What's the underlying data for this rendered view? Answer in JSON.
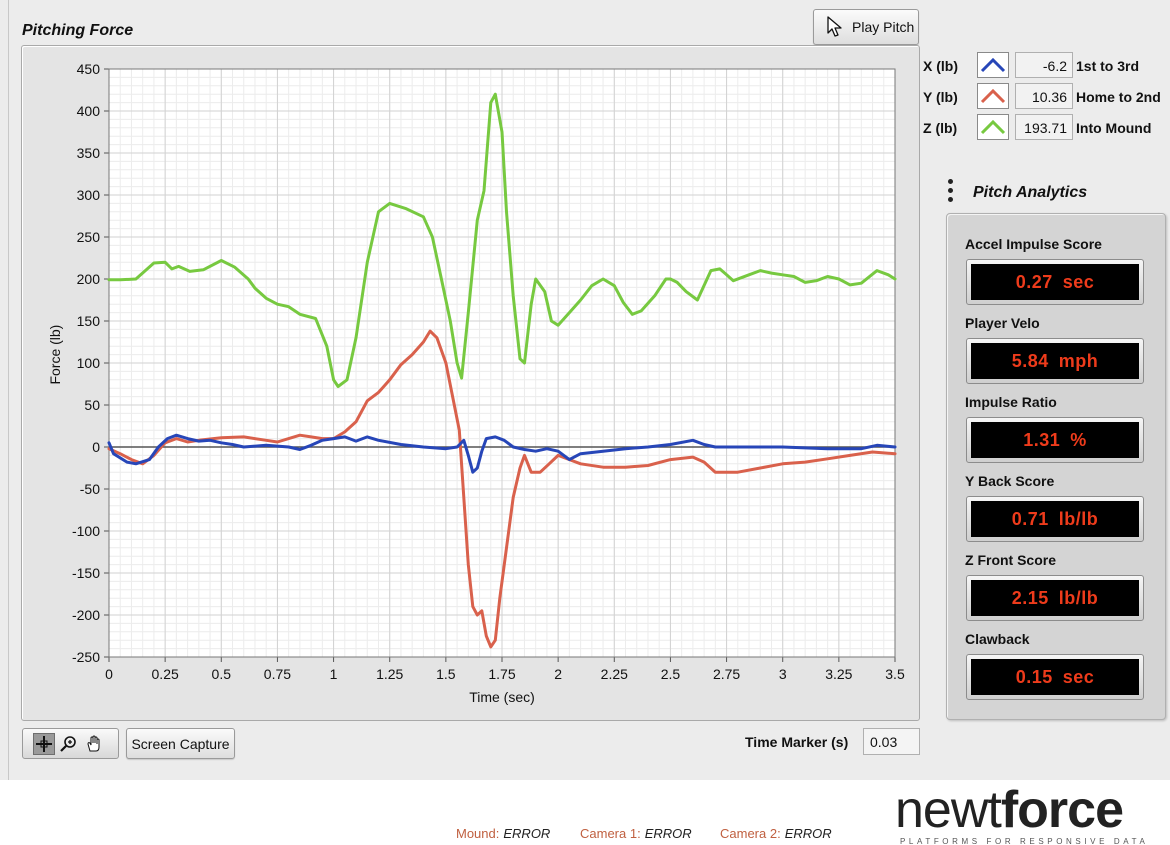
{
  "title": "Pitching Force",
  "play_button": {
    "label": "Play Pitch"
  },
  "legend": [
    {
      "axis": "X (lb)",
      "value": "-6.2",
      "description": "1st to 3rd",
      "color": "#2746b8"
    },
    {
      "axis": "Y (lb)",
      "value": "10.36",
      "description": "Home to 2nd",
      "color": "#d9614c"
    },
    {
      "axis": "Z (lb)",
      "value": "193.71",
      "description": "Into Mound",
      "color": "#77c940"
    }
  ],
  "analytics": {
    "title": "Pitch Analytics",
    "metrics": [
      {
        "label": "Accel Impulse Score",
        "value": "0.27",
        "unit": "sec"
      },
      {
        "label": "Player Velo",
        "value": "5.84",
        "unit": "mph"
      },
      {
        "label": "Impulse Ratio",
        "value": "1.31",
        "unit": "%"
      },
      {
        "label": "Y Back Score",
        "value": "0.71",
        "unit": "lb/lb"
      },
      {
        "label": "Z Front Score",
        "value": "2.15",
        "unit": "lb/lb"
      },
      {
        "label": "Clawback",
        "value": "0.15",
        "unit": "sec"
      }
    ]
  },
  "toolbar": {
    "screen_capture_label": "Screen Capture"
  },
  "time_marker": {
    "label": "Time Marker (s)",
    "value": "0.03"
  },
  "status": [
    {
      "key": "Mound:",
      "value": "ERROR"
    },
    {
      "key": "Camera 1:",
      "value": "ERROR"
    },
    {
      "key": "Camera 2:",
      "value": "ERROR"
    }
  ],
  "logo": {
    "part1": "newt",
    "part2": "force",
    "tagline": "PLATFORMS FOR RESPONSIVE DATA"
  },
  "chart_data": {
    "type": "line",
    "title": "",
    "xlabel": "Time (sec)",
    "ylabel": "Force (lb)",
    "xlim": [
      0,
      3.5
    ],
    "ylim": [
      -250,
      450
    ],
    "x_ticks": [
      "0",
      "0.25",
      "0.5",
      "0.75",
      "1",
      "1.25",
      "1.5",
      "1.75",
      "2",
      "2.25",
      "2.5",
      "2.75",
      "3",
      "3.25",
      "3.5"
    ],
    "y_ticks": [
      "450",
      "400",
      "350",
      "300",
      "250",
      "200",
      "150",
      "100",
      "50",
      "0",
      "-50",
      "-100",
      "-150",
      "-200",
      "-250"
    ],
    "grid": true,
    "zero_line": true,
    "series": [
      {
        "name": "Z (lb)",
        "color": "#77c940",
        "points": [
          [
            0,
            199
          ],
          [
            0.05,
            199
          ],
          [
            0.12,
            200
          ],
          [
            0.2,
            219
          ],
          [
            0.25,
            220
          ],
          [
            0.28,
            212
          ],
          [
            0.31,
            215
          ],
          [
            0.36,
            209
          ],
          [
            0.42,
            211
          ],
          [
            0.5,
            222
          ],
          [
            0.56,
            214
          ],
          [
            0.62,
            200
          ],
          [
            0.65,
            189
          ],
          [
            0.7,
            177
          ],
          [
            0.75,
            170
          ],
          [
            0.8,
            167
          ],
          [
            0.85,
            158
          ],
          [
            0.92,
            153
          ],
          [
            0.97,
            120
          ],
          [
            1.0,
            80
          ],
          [
            1.02,
            72
          ],
          [
            1.06,
            80
          ],
          [
            1.1,
            130
          ],
          [
            1.15,
            220
          ],
          [
            1.2,
            280
          ],
          [
            1.25,
            290
          ],
          [
            1.32,
            284
          ],
          [
            1.4,
            274
          ],
          [
            1.44,
            250
          ],
          [
            1.48,
            200
          ],
          [
            1.52,
            150
          ],
          [
            1.55,
            100
          ],
          [
            1.57,
            82
          ],
          [
            1.6,
            160
          ],
          [
            1.64,
            270
          ],
          [
            1.67,
            305
          ],
          [
            1.7,
            410
          ],
          [
            1.72,
            420
          ],
          [
            1.75,
            375
          ],
          [
            1.77,
            280
          ],
          [
            1.8,
            180
          ],
          [
            1.83,
            105
          ],
          [
            1.85,
            100
          ],
          [
            1.88,
            170
          ],
          [
            1.9,
            200
          ],
          [
            1.94,
            185
          ],
          [
            1.97,
            150
          ],
          [
            2.0,
            145
          ],
          [
            2.05,
            160
          ],
          [
            2.1,
            175
          ],
          [
            2.15,
            192
          ],
          [
            2.2,
            200
          ],
          [
            2.25,
            192
          ],
          [
            2.29,
            172
          ],
          [
            2.33,
            158
          ],
          [
            2.37,
            162
          ],
          [
            2.43,
            180
          ],
          [
            2.48,
            200
          ],
          [
            2.5,
            200
          ],
          [
            2.53,
            196
          ],
          [
            2.57,
            185
          ],
          [
            2.62,
            175
          ],
          [
            2.68,
            210
          ],
          [
            2.72,
            212
          ],
          [
            2.75,
            205
          ],
          [
            2.78,
            198
          ],
          [
            2.85,
            205
          ],
          [
            2.9,
            210
          ],
          [
            2.95,
            207
          ],
          [
            3.0,
            205
          ],
          [
            3.05,
            203
          ],
          [
            3.1,
            196
          ],
          [
            3.15,
            198
          ],
          [
            3.2,
            203
          ],
          [
            3.25,
            200
          ],
          [
            3.3,
            193
          ],
          [
            3.35,
            195
          ],
          [
            3.42,
            210
          ],
          [
            3.47,
            205
          ],
          [
            3.5,
            200
          ]
        ]
      },
      {
        "name": "Y (lb)",
        "color": "#d9614c",
        "points": [
          [
            0,
            -2
          ],
          [
            0.05,
            -8
          ],
          [
            0.1,
            -15
          ],
          [
            0.15,
            -20
          ],
          [
            0.2,
            -10
          ],
          [
            0.25,
            5
          ],
          [
            0.3,
            10
          ],
          [
            0.35,
            6
          ],
          [
            0.4,
            8
          ],
          [
            0.5,
            11
          ],
          [
            0.6,
            12
          ],
          [
            0.7,
            8
          ],
          [
            0.75,
            6
          ],
          [
            0.8,
            10
          ],
          [
            0.85,
            14
          ],
          [
            0.9,
            12
          ],
          [
            0.95,
            10
          ],
          [
            1.0,
            10
          ],
          [
            1.05,
            18
          ],
          [
            1.1,
            30
          ],
          [
            1.15,
            55
          ],
          [
            1.2,
            65
          ],
          [
            1.25,
            80
          ],
          [
            1.3,
            98
          ],
          [
            1.35,
            110
          ],
          [
            1.4,
            125
          ],
          [
            1.43,
            138
          ],
          [
            1.46,
            130
          ],
          [
            1.5,
            100
          ],
          [
            1.53,
            60
          ],
          [
            1.56,
            20
          ],
          [
            1.58,
            -60
          ],
          [
            1.6,
            -140
          ],
          [
            1.62,
            -190
          ],
          [
            1.64,
            -200
          ],
          [
            1.66,
            -195
          ],
          [
            1.68,
            -225
          ],
          [
            1.7,
            -238
          ],
          [
            1.72,
            -230
          ],
          [
            1.74,
            -180
          ],
          [
            1.77,
            -120
          ],
          [
            1.8,
            -60
          ],
          [
            1.83,
            -25
          ],
          [
            1.85,
            -10
          ],
          [
            1.88,
            -30
          ],
          [
            1.92,
            -30
          ],
          [
            1.96,
            -20
          ],
          [
            2.0,
            -10
          ],
          [
            2.05,
            -15
          ],
          [
            2.1,
            -20
          ],
          [
            2.2,
            -24
          ],
          [
            2.3,
            -24
          ],
          [
            2.4,
            -22
          ],
          [
            2.5,
            -15
          ],
          [
            2.6,
            -12
          ],
          [
            2.65,
            -18
          ],
          [
            2.7,
            -30
          ],
          [
            2.8,
            -30
          ],
          [
            2.9,
            -25
          ],
          [
            3.0,
            -20
          ],
          [
            3.1,
            -18
          ],
          [
            3.2,
            -14
          ],
          [
            3.3,
            -10
          ],
          [
            3.4,
            -6
          ],
          [
            3.5,
            -8
          ]
        ]
      },
      {
        "name": "X (lb)",
        "color": "#2746b8",
        "points": [
          [
            0,
            5
          ],
          [
            0.02,
            -8
          ],
          [
            0.08,
            -18
          ],
          [
            0.12,
            -20
          ],
          [
            0.18,
            -15
          ],
          [
            0.22,
            0
          ],
          [
            0.26,
            10
          ],
          [
            0.3,
            14
          ],
          [
            0.35,
            10
          ],
          [
            0.4,
            7
          ],
          [
            0.45,
            8
          ],
          [
            0.5,
            5
          ],
          [
            0.55,
            3
          ],
          [
            0.6,
            0
          ],
          [
            0.7,
            2
          ],
          [
            0.8,
            0
          ],
          [
            0.85,
            -3
          ],
          [
            0.9,
            2
          ],
          [
            0.95,
            8
          ],
          [
            1.0,
            10
          ],
          [
            1.05,
            12
          ],
          [
            1.1,
            7
          ],
          [
            1.15,
            12
          ],
          [
            1.2,
            8
          ],
          [
            1.3,
            3
          ],
          [
            1.4,
            0
          ],
          [
            1.5,
            -2
          ],
          [
            1.55,
            0
          ],
          [
            1.58,
            8
          ],
          [
            1.6,
            -10
          ],
          [
            1.62,
            -30
          ],
          [
            1.64,
            -25
          ],
          [
            1.66,
            -5
          ],
          [
            1.68,
            10
          ],
          [
            1.72,
            12
          ],
          [
            1.76,
            8
          ],
          [
            1.8,
            0
          ],
          [
            1.85,
            -3
          ],
          [
            1.9,
            -5
          ],
          [
            1.95,
            -2
          ],
          [
            2.0,
            -5
          ],
          [
            2.05,
            -15
          ],
          [
            2.1,
            -8
          ],
          [
            2.2,
            -5
          ],
          [
            2.3,
            -2
          ],
          [
            2.4,
            0
          ],
          [
            2.5,
            3
          ],
          [
            2.6,
            8
          ],
          [
            2.65,
            3
          ],
          [
            2.7,
            0
          ],
          [
            2.8,
            0
          ],
          [
            3.0,
            0
          ],
          [
            3.2,
            -2
          ],
          [
            3.35,
            -2
          ],
          [
            3.42,
            2
          ],
          [
            3.5,
            0
          ]
        ]
      }
    ]
  }
}
